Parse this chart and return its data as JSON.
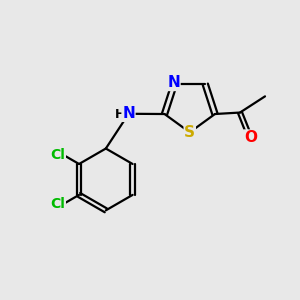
{
  "background_color": "#e8e8e8",
  "bond_color": "#000000",
  "atom_colors": {
    "N": "#0000ff",
    "S": "#ccaa00",
    "O": "#ff0000",
    "Cl": "#00bb00",
    "H": "#000000",
    "C": "#000000"
  },
  "figsize": [
    3.0,
    3.0
  ],
  "dpi": 100,
  "lw": 1.6
}
